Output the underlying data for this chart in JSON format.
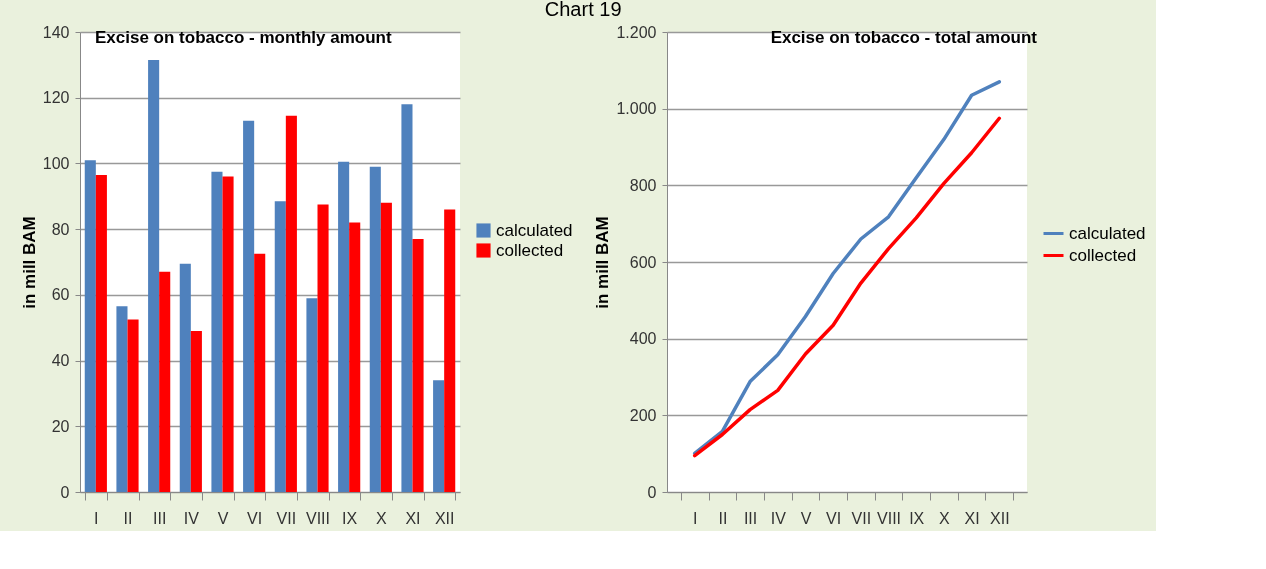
{
  "chart_data": [
    {
      "type": "bar",
      "title": "Excise on tobacco - monthly amount",
      "ylabel": "in mill  BAM",
      "annotations": [
        "Chart 19"
      ],
      "categories": [
        "I",
        "II",
        "III",
        "IV",
        "V",
        "VI",
        "VII",
        "VIII",
        "IX",
        "X",
        "XI",
        "XII"
      ],
      "series": [
        {
          "name": "calculated",
          "color": "#4f81bd",
          "values": [
            101,
            56.5,
            131.5,
            69.5,
            97.5,
            113,
            88.5,
            59,
            100.5,
            99,
            118,
            34
          ]
        },
        {
          "name": "collected",
          "color": "#ff0000",
          "values": [
            96.5,
            52.5,
            67,
            49,
            96,
            72.5,
            114.5,
            87.5,
            82,
            88,
            77,
            86
          ]
        }
      ],
      "ylim": [
        0,
        140
      ],
      "yticks": [
        0,
        20,
        40,
        60,
        80,
        100,
        120,
        140
      ],
      "grid": "y",
      "legend": "right"
    },
    {
      "type": "line",
      "title": "Excise on tobacco - total amount",
      "ylabel": "in mill  BAM",
      "categories": [
        "I",
        "II",
        "III",
        "IV",
        "V",
        "VI",
        "VII",
        "VIII",
        "IX",
        "X",
        "XI",
        "XII"
      ],
      "series": [
        {
          "name": "calculated",
          "color": "#4f81bd",
          "values": [
            101,
            158,
            288,
            358,
            458,
            570,
            660,
            718,
            820,
            920,
            1035,
            1070
          ]
        },
        {
          "name": "collected",
          "color": "#ff0000",
          "values": [
            95,
            150,
            215,
            265,
            360,
            435,
            545,
            635,
            715,
            805,
            885,
            975
          ]
        }
      ],
      "ylim": [
        0,
        1200
      ],
      "yticks": [
        0,
        200,
        400,
        600,
        800,
        {
          "value": 1000,
          "label": "1.000"
        },
        {
          "value": 1200,
          "label": "1.200"
        }
      ],
      "grid": "y",
      "legend": "right",
      "line_style": "solid",
      "marker": "none"
    }
  ]
}
